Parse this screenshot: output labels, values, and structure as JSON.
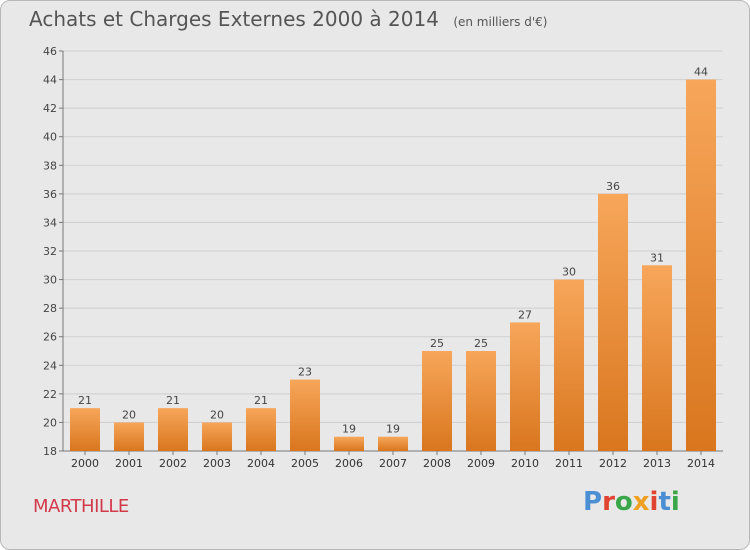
{
  "header": {
    "title": "Achats et Charges Externes 2000 à 2014",
    "unit": "(en milliers d'€)"
  },
  "footer": {
    "town": "MARTHILLE",
    "logo_text": "Proxiti"
  },
  "colors": {
    "bar_light": "#f7a65a",
    "bar_dark": "#d9761e",
    "town": "#d23a4a",
    "logo_letters": [
      "#4a8fd4",
      "#e0432f",
      "#3aa64a",
      "#f0a020",
      "#e0432f",
      "#4a8fd4",
      "#3aa64a"
    ]
  },
  "chart_data": {
    "type": "bar",
    "title": "Achats et Charges Externes 2000 à 2014",
    "categories": [
      "2000",
      "2001",
      "2002",
      "2003",
      "2004",
      "2005",
      "2006",
      "2007",
      "2008",
      "2009",
      "2010",
      "2011",
      "2012",
      "2013",
      "2014"
    ],
    "values": [
      21,
      20,
      21,
      20,
      21,
      23,
      19,
      19,
      25,
      25,
      27,
      30,
      36,
      31,
      44
    ],
    "ylim": [
      18,
      46
    ],
    "yticks": [
      18,
      20,
      22,
      24,
      26,
      28,
      30,
      32,
      34,
      36,
      38,
      40,
      42,
      44,
      46
    ],
    "grid": true,
    "legend": "none"
  }
}
